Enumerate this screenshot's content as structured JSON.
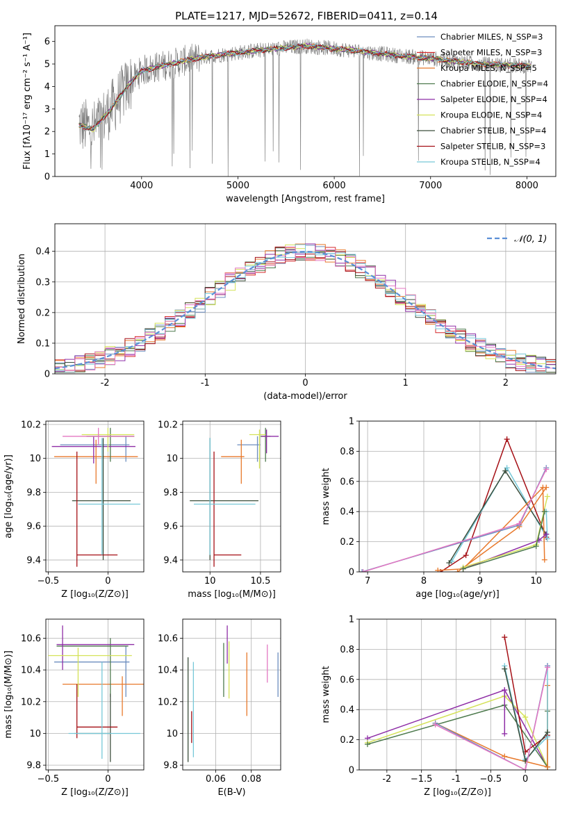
{
  "figure": {
    "title": "PLATE=1217, MJD=52672, FIBERID=0411, z=0.14"
  },
  "chart_data": [
    {
      "id": "spectrum",
      "type": "line",
      "xlabel": "wavelength [Angstrom, rest frame]",
      "ylabel": "Flux [fλ10⁻¹⁷ erg cm⁻² s⁻¹ A⁻¹]",
      "xlim": [
        3100,
        8300
      ],
      "ylim": [
        0,
        6.7
      ],
      "xticks": [
        4000,
        5000,
        6000,
        7000,
        8000
      ],
      "yticks": [
        0,
        1,
        2,
        3,
        4,
        5,
        6
      ],
      "grid": false,
      "legend_position": "right",
      "data_color": "#808080",
      "data_knots": [
        [
          3350,
          2.3
        ],
        [
          3500,
          2.1
        ],
        [
          3700,
          3.1
        ],
        [
          3850,
          4.0
        ],
        [
          4000,
          4.7
        ],
        [
          4200,
          4.9
        ],
        [
          4500,
          5.2
        ],
        [
          4800,
          5.4
        ],
        [
          5200,
          5.6
        ],
        [
          5700,
          5.8
        ],
        [
          6200,
          5.6
        ],
        [
          6600,
          5.4
        ],
        [
          7000,
          5.25
        ],
        [
          7500,
          5.0
        ],
        [
          8050,
          4.9
        ]
      ],
      "series": [
        {
          "name": "Chabrier MILES, N_SSP=3",
          "color": "#6c8ebf"
        },
        {
          "name": "Salpeter MILES, N_SSP=3",
          "color": "#d62728"
        },
        {
          "name": "Kroupa MILES, N_SSP=5",
          "color": "#e8792b"
        },
        {
          "name": "Chabrier ELODIE, N_SSP=4",
          "color": "#4d7a4d"
        },
        {
          "name": "Salpeter ELODIE, N_SSP=4",
          "color": "#8e2da6"
        },
        {
          "name": "Kroupa ELODIE, N_SSP=4",
          "color": "#d4e157"
        },
        {
          "name": "Chabrier STELIB, N_SSP=4",
          "color": "#3b4d3b"
        },
        {
          "name": "Salpeter STELIB, N_SSP=3",
          "color": "#a50f15"
        },
        {
          "name": "Kroupa STELIB, N_SSP=4",
          "color": "#76c8d8"
        }
      ]
    },
    {
      "id": "residuals",
      "type": "histogram",
      "xlabel": "(data-model)/error",
      "ylabel": "Normed distribution",
      "xlim": [
        -2.5,
        2.5
      ],
      "ylim": [
        0,
        0.49
      ],
      "xticks": [
        -2,
        -1,
        0,
        1,
        2
      ],
      "yticks": [
        0.0,
        0.1,
        0.2,
        0.3,
        0.4
      ],
      "grid": true,
      "legend": {
        "label": "𝒩(0, 1)",
        "position": "top-right",
        "color": "#5b8fd6"
      },
      "bin_width": 0.1,
      "series_colors": [
        "#6c8ebf",
        "#d62728",
        "#e8792b",
        "#4d7a4d",
        "#8e2da6",
        "#d4e157",
        "#3b4d3b",
        "#a50f15",
        "#76c8d8",
        "#e377c2"
      ]
    },
    {
      "id": "age-vs-Z",
      "type": "errorbar",
      "xlabel": "Z [log₁₀(Z/Z⊙)]",
      "ylabel": "age  [log₁₀(age/yr)]",
      "xlim": [
        -0.52,
        0.3
      ],
      "ylim": [
        9.33,
        10.22
      ],
      "xticks": [
        -0.5,
        0.0
      ],
      "yticks": [
        9.4,
        9.6,
        9.8,
        10.0,
        10.2
      ],
      "grid": true,
      "points": [
        {
          "color": "#6c8ebf",
          "x": 0.15,
          "y": 10.08,
          "xerr": [
            0.55,
            0.03
          ],
          "yerr": [
            0.1,
            0.05
          ]
        },
        {
          "color": "#e8792b",
          "x": -0.1,
          "y": 10.01,
          "xerr": [
            0.35,
            0.35
          ],
          "yerr": [
            0.16,
            0.1
          ]
        },
        {
          "color": "#4d7a4d",
          "x": 0.02,
          "y": 10.13,
          "xerr": [
            0.2,
            0.2
          ],
          "yerr": [
            0.15,
            0.05
          ]
        },
        {
          "color": "#8e2da6",
          "x": -0.12,
          "y": 10.07,
          "xerr": [
            0.35,
            0.35
          ],
          "yerr": [
            0.1,
            0.06
          ]
        },
        {
          "color": "#d4e157",
          "x": 0.0,
          "y": 10.14,
          "xerr": [
            0.22,
            0.22
          ],
          "yerr": [
            0.1,
            0.04
          ]
        },
        {
          "color": "#3b4d3b",
          "x": -0.04,
          "y": 9.75,
          "xerr": [
            0.26,
            0.23
          ],
          "yerr": [
            0.35,
            0.37
          ]
        },
        {
          "color": "#a50f15",
          "x": -0.26,
          "y": 9.43,
          "xerr": [
            0.0,
            0.34
          ],
          "yerr": [
            0.07,
            0.61
          ]
        },
        {
          "color": "#76c8d8",
          "x": -0.05,
          "y": 9.73,
          "xerr": [
            0.2,
            0.32
          ],
          "yerr": [
            0.3,
            0.39
          ]
        },
        {
          "color": "#e377c2",
          "x": -0.08,
          "y": 10.13,
          "xerr": [
            0.3,
            0.3
          ],
          "yerr": [
            0.05,
            0.05
          ]
        }
      ]
    },
    {
      "id": "age-vs-mass",
      "type": "errorbar",
      "xlabel": "mass [log₁₀(M/M⊙)]",
      "ylabel": "",
      "xlim": [
        9.73,
        10.7
      ],
      "ylim": [
        9.33,
        10.22
      ],
      "xticks": [
        10.0,
        10.5
      ],
      "yticks": [
        9.4,
        9.6,
        9.8,
        10.0,
        10.2
      ],
      "grid": true,
      "points": [
        {
          "color": "#6c8ebf",
          "x": 10.47,
          "y": 10.08,
          "xerr": [
            0.2,
            0.03
          ],
          "yerr": [
            0.1,
            0.05
          ]
        },
        {
          "color": "#e8792b",
          "x": 10.31,
          "y": 10.01,
          "xerr": [
            0.2,
            0.03
          ],
          "yerr": [
            0.16,
            0.1
          ]
        },
        {
          "color": "#4d7a4d",
          "x": 10.55,
          "y": 10.13,
          "xerr": [
            0.05,
            0.05
          ],
          "yerr": [
            0.15,
            0.05
          ]
        },
        {
          "color": "#8e2da6",
          "x": 10.56,
          "y": 10.13,
          "xerr": [
            0.05,
            0.12
          ],
          "yerr": [
            0.1,
            0.04
          ]
        },
        {
          "color": "#d4e157",
          "x": 10.49,
          "y": 10.14,
          "xerr": [
            0.1,
            0.06
          ],
          "yerr": [
            0.2,
            0.03
          ]
        },
        {
          "color": "#3b4d3b",
          "x": 10.0,
          "y": 9.75,
          "xerr": [
            0.2,
            0.48
          ],
          "yerr": [
            0.35,
            0.37
          ]
        },
        {
          "color": "#a50f15",
          "x": 10.04,
          "y": 9.43,
          "xerr": [
            0.0,
            0.27
          ],
          "yerr": [
            0.07,
            0.61
          ]
        },
        {
          "color": "#76c8d8",
          "x": 10.0,
          "y": 9.73,
          "xerr": [
            0.16,
            0.45
          ],
          "yerr": [
            0.3,
            0.39
          ]
        }
      ]
    },
    {
      "id": "mass-weight-vs-age",
      "type": "line",
      "xlabel": "age  [log₁₀(age/yr)]",
      "ylabel": "mass weight",
      "xlim": [
        6.85,
        10.35
      ],
      "ylim": [
        0,
        1
      ],
      "xticks": [
        7,
        8,
        9,
        10
      ],
      "yticks": [
        0.0,
        0.2,
        0.4,
        0.6,
        0.8,
        1.0
      ],
      "grid": true,
      "series": [
        {
          "color": "#a50f15",
          "x": [
            8.3,
            8.75,
            9.48,
            10.18
          ],
          "y": [
            0.0,
            0.11,
            0.88,
            0.23
          ]
        },
        {
          "color": "#76c8d8",
          "x": [
            8.5,
            9.48,
            10.2,
            10.18
          ],
          "y": [
            0.07,
            0.69,
            0.22,
            0.4
          ]
        },
        {
          "color": "#3b4d3b",
          "x": [
            8.45,
            9.45,
            10.18
          ],
          "y": [
            0.06,
            0.67,
            0.25
          ]
        },
        {
          "color": "#e8792b",
          "x": [
            8.25,
            8.7,
            10.12,
            10.15
          ],
          "y": [
            0.01,
            0.02,
            0.56,
            0.08
          ]
        },
        {
          "color": "#e8792b",
          "x": [
            8.6,
            9.7,
            10.18
          ],
          "y": [
            0.0,
            0.3,
            0.56
          ]
        },
        {
          "color": "#6c8ebf",
          "x": [
            6.9,
            9.7,
            10.18
          ],
          "y": [
            0.0,
            0.31,
            0.69
          ]
        },
        {
          "color": "#e377c2",
          "x": [
            6.92,
            9.7,
            10.18
          ],
          "y": [
            0.0,
            0.32,
            0.68
          ]
        },
        {
          "color": "#8e2da6",
          "x": [
            8.7,
            10.05,
            10.18
          ],
          "y": [
            0.02,
            0.21,
            0.25
          ]
        },
        {
          "color": "#d4e157",
          "x": [
            8.7,
            10.0,
            10.2
          ],
          "y": [
            0.03,
            0.18,
            0.5
          ]
        },
        {
          "color": "#4d7a4d",
          "x": [
            8.7,
            10.0,
            10.15
          ],
          "y": [
            0.02,
            0.17,
            0.4
          ]
        }
      ]
    },
    {
      "id": "mass-vs-Z",
      "type": "errorbar",
      "xlabel": "Z [log₁₀(Z/Z⊙)]",
      "ylabel": "mass [log₁₀(M/M⊙)]",
      "xlim": [
        -0.52,
        0.3
      ],
      "ylim": [
        9.77,
        10.72
      ],
      "xticks": [
        -0.5,
        0.0
      ],
      "yticks": [
        9.8,
        10.0,
        10.2,
        10.4,
        10.6
      ],
      "grid": true,
      "points": [
        {
          "color": "#6c8ebf",
          "x": 0.15,
          "y": 10.45,
          "xerr": [
            0.6,
            0.03
          ],
          "yerr": [
            0.22,
            0.1
          ]
        },
        {
          "color": "#e8792b",
          "x": 0.12,
          "y": 10.31,
          "xerr": [
            0.5,
            0.18
          ],
          "yerr": [
            0.2,
            0.05
          ]
        },
        {
          "color": "#4d7a4d",
          "x": 0.02,
          "y": 10.55,
          "xerr": [
            0.45,
            0.15
          ],
          "yerr": [
            0.32,
            0.05
          ]
        },
        {
          "color": "#8e2da6",
          "x": -0.38,
          "y": 10.56,
          "xerr": [
            0.05,
            0.6
          ],
          "yerr": [
            0.16,
            0.12
          ]
        },
        {
          "color": "#d4e157",
          "x": -0.25,
          "y": 10.49,
          "xerr": [
            0.25,
            0.45
          ],
          "yerr": [
            0.26,
            0.05
          ]
        },
        {
          "color": "#3b4d3b",
          "x": 0.02,
          "y": 10.0,
          "xerr": [
            0.3,
            0.0
          ],
          "yerr": [
            0.18,
            0.25
          ]
        },
        {
          "color": "#a50f15",
          "x": -0.26,
          "y": 10.04,
          "xerr": [
            0.0,
            0.34
          ],
          "yerr": [
            0.07,
            0.27
          ]
        },
        {
          "color": "#76c8d8",
          "x": -0.05,
          "y": 10.0,
          "xerr": [
            0.28,
            0.32
          ],
          "yerr": [
            0.16,
            0.45
          ]
        }
      ]
    },
    {
      "id": "mass-vs-ebv",
      "type": "errorbar",
      "xlabel": "E(B-V)",
      "ylabel": "",
      "xlim": [
        0.0415,
        0.0965
      ],
      "ylim": [
        9.77,
        10.72
      ],
      "xticks": [
        0.06,
        0.08
      ],
      "yticks": [
        9.8,
        10.0,
        10.2,
        10.4,
        10.6
      ],
      "grid": true,
      "points": [
        {
          "color": "#3b4d3b",
          "x": 0.0445,
          "y": 10.15,
          "xerr": [
            0,
            0
          ],
          "yerr": [
            0.33,
            0.33
          ]
        },
        {
          "color": "#a50f15",
          "x": 0.0465,
          "y": 10.04,
          "xerr": [
            0,
            0
          ],
          "yerr": [
            0.1,
            0.1
          ]
        },
        {
          "color": "#76c8d8",
          "x": 0.0475,
          "y": 10.15,
          "xerr": [
            0,
            0
          ],
          "yerr": [
            0.3,
            0.3
          ]
        },
        {
          "color": "#4d7a4d",
          "x": 0.0645,
          "y": 10.4,
          "xerr": [
            0,
            0
          ],
          "yerr": [
            0.17,
            0.17
          ]
        },
        {
          "color": "#8e2da6",
          "x": 0.0665,
          "y": 10.56,
          "xerr": [
            0,
            0
          ],
          "yerr": [
            0.12,
            0.12
          ]
        },
        {
          "color": "#d4e157",
          "x": 0.0675,
          "y": 10.4,
          "xerr": [
            0,
            0
          ],
          "yerr": [
            0.18,
            0.18
          ]
        },
        {
          "color": "#e8792b",
          "x": 0.0775,
          "y": 10.31,
          "xerr": [
            0,
            0
          ],
          "yerr": [
            0.2,
            0.2
          ]
        },
        {
          "color": "#e377c2",
          "x": 0.089,
          "y": 10.44,
          "xerr": [
            0,
            0
          ],
          "yerr": [
            0.12,
            0.12
          ]
        },
        {
          "color": "#6c8ebf",
          "x": 0.095,
          "y": 10.37,
          "xerr": [
            0,
            0
          ],
          "yerr": [
            0.14,
            0.14
          ]
        }
      ]
    },
    {
      "id": "mass-weight-vs-Z",
      "type": "line",
      "xlabel": "Z [log₁₀(Z/Z⊙)]",
      "ylabel": "mass weight",
      "xlim": [
        -2.4,
        0.44
      ],
      "ylim": [
        0,
        1
      ],
      "xticks": [
        -2.0,
        -1.5,
        -1.0,
        -0.5,
        0.0
      ],
      "yticks": [
        0.0,
        0.2,
        0.4,
        0.6,
        0.8,
        1.0
      ],
      "grid": true,
      "series": [
        {
          "color": "#8e2da6",
          "x": [
            -2.28,
            -0.3,
            0.32
          ],
          "y": [
            0.21,
            0.53,
            0.02
          ]
        },
        {
          "color": "#d4e157",
          "x": [
            -2.28,
            -0.3,
            0.0,
            0.32
          ],
          "y": [
            0.18,
            0.49,
            0.35,
            0.02
          ]
        },
        {
          "color": "#4d7a4d",
          "x": [
            -2.28,
            -0.3,
            0.32,
            0.32
          ],
          "y": [
            0.17,
            0.43,
            0.02,
            0.39
          ]
        },
        {
          "color": "#e8792b",
          "x": [
            -1.3,
            -0.3,
            0.32,
            0.32
          ],
          "y": [
            0.31,
            0.09,
            0.02,
            0.56
          ]
        },
        {
          "color": "#a50f15",
          "x": [
            -0.3,
            0.0,
            0.32
          ],
          "y": [
            0.88,
            0.12,
            0.23
          ]
        },
        {
          "color": "#76c8d8",
          "x": [
            -0.3,
            0.0,
            0.32,
            0.32
          ],
          "y": [
            0.69,
            0.07,
            0.22,
            0.69
          ]
        },
        {
          "color": "#3b4d3b",
          "x": [
            -0.3,
            0.0,
            0.32
          ],
          "y": [
            0.67,
            0.06,
            0.25
          ]
        },
        {
          "color": "#6c8ebf",
          "x": [
            -1.3,
            0.0,
            0.32
          ],
          "y": [
            0.31,
            0.0,
            0.69
          ]
        },
        {
          "color": "#e377c2",
          "x": [
            -1.3,
            0.0,
            0.32
          ],
          "y": [
            0.3,
            0.0,
            0.68
          ]
        },
        {
          "color": "#8e2da6",
          "x": [
            -0.3,
            -0.3
          ],
          "y": [
            0.53,
            0.24
          ]
        }
      ]
    }
  ]
}
